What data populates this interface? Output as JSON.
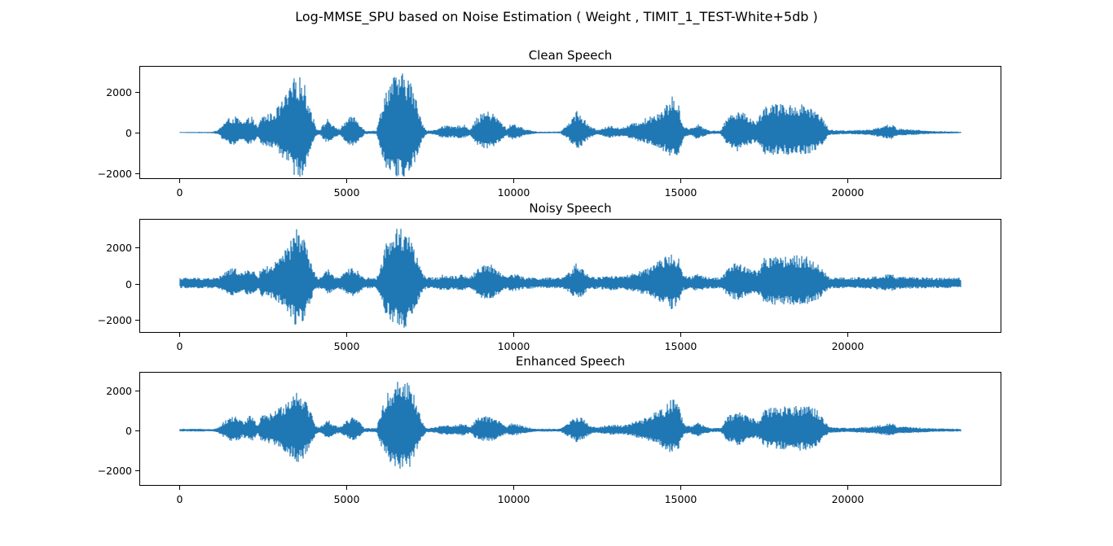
{
  "figure_title": "Log-MMSE_SPU based on Noise Estimation ( Weight , TIMIT_1_TEST-White+5db )",
  "line_color": "#1f77b4",
  "chart_data": [
    {
      "type": "line",
      "title": "Clean Speech",
      "xlim": [
        -1200,
        24600
      ],
      "ylim": [
        -2300,
        3300
      ],
      "x_ticks": [
        0,
        5000,
        10000,
        15000,
        20000
      ],
      "x_tick_labels": [
        "0",
        "5000",
        "10000",
        "15000",
        "20000"
      ],
      "y_ticks": [
        -2000,
        0,
        2000
      ],
      "y_tick_labels": [
        "−2000",
        "0",
        "2000"
      ],
      "n_samples": 23400,
      "noise_floor": 12,
      "envelope_points": [
        [
          0,
          25
        ],
        [
          1000,
          40
        ],
        [
          1150,
          120
        ],
        [
          1300,
          450
        ],
        [
          1500,
          750
        ],
        [
          1700,
          800
        ],
        [
          1900,
          500
        ],
        [
          2150,
          850
        ],
        [
          2350,
          250
        ],
        [
          2450,
          850
        ],
        [
          2800,
          1000
        ],
        [
          3000,
          1400
        ],
        [
          3300,
          2200
        ],
        [
          3500,
          2950
        ],
        [
          3700,
          2700
        ],
        [
          3900,
          1400
        ],
        [
          4100,
          200
        ],
        [
          4200,
          150
        ],
        [
          4450,
          750
        ],
        [
          4600,
          350
        ],
        [
          4800,
          180
        ],
        [
          5000,
          650
        ],
        [
          5200,
          900
        ],
        [
          5400,
          500
        ],
        [
          5550,
          100
        ],
        [
          5900,
          100
        ],
        [
          6050,
          1300
        ],
        [
          6200,
          2300
        ],
        [
          6400,
          2800
        ],
        [
          6600,
          2950
        ],
        [
          6850,
          2900
        ],
        [
          7050,
          1900
        ],
        [
          7250,
          600
        ],
        [
          7400,
          100
        ],
        [
          7700,
          150
        ],
        [
          7850,
          380
        ],
        [
          8200,
          300
        ],
        [
          8500,
          420
        ],
        [
          8700,
          180
        ],
        [
          8900,
          750
        ],
        [
          9150,
          1100
        ],
        [
          9400,
          950
        ],
        [
          9600,
          600
        ],
        [
          9800,
          200
        ],
        [
          9950,
          500
        ],
        [
          10150,
          350
        ],
        [
          10300,
          200
        ],
        [
          10700,
          50
        ],
        [
          11400,
          50
        ],
        [
          11700,
          600
        ],
        [
          11900,
          1150
        ],
        [
          12100,
          700
        ],
        [
          12300,
          300
        ],
        [
          12500,
          150
        ],
        [
          12900,
          350
        ],
        [
          13250,
          250
        ],
        [
          13400,
          350
        ],
        [
          14000,
          750
        ],
        [
          14500,
          1250
        ],
        [
          14750,
          1800
        ],
        [
          14950,
          1350
        ],
        [
          15100,
          300
        ],
        [
          15300,
          200
        ],
        [
          15500,
          450
        ],
        [
          15700,
          250
        ],
        [
          15900,
          100
        ],
        [
          16200,
          100
        ],
        [
          16400,
          800
        ],
        [
          16700,
          1200
        ],
        [
          16950,
          900
        ],
        [
          17300,
          600
        ],
        [
          17500,
          1400
        ],
        [
          17800,
          1450
        ],
        [
          18150,
          1400
        ],
        [
          18400,
          1450
        ],
        [
          18800,
          1400
        ],
        [
          19100,
          1100
        ],
        [
          19300,
          600
        ],
        [
          19450,
          150
        ],
        [
          20000,
          100
        ],
        [
          20700,
          180
        ],
        [
          21100,
          350
        ],
        [
          21300,
          450
        ],
        [
          21500,
          200
        ],
        [
          22000,
          150
        ],
        [
          22500,
          80
        ],
        [
          23000,
          60
        ],
        [
          23400,
          40
        ]
      ]
    },
    {
      "type": "line",
      "title": "Noisy Speech",
      "xlim": [
        -1200,
        24600
      ],
      "ylim": [
        -2700,
        3550
      ],
      "x_ticks": [
        0,
        5000,
        10000,
        15000,
        20000
      ],
      "x_tick_labels": [
        "0",
        "5000",
        "10000",
        "15000",
        "20000"
      ],
      "y_ticks": [
        -2000,
        0,
        2000
      ],
      "y_tick_labels": [
        "−2000",
        "0",
        "2000"
      ],
      "n_samples": 23400,
      "noise_floor": 330,
      "envelope_points": [
        [
          0,
          25
        ],
        [
          1000,
          40
        ],
        [
          1150,
          120
        ],
        [
          1300,
          450
        ],
        [
          1500,
          750
        ],
        [
          1700,
          800
        ],
        [
          1900,
          500
        ],
        [
          2150,
          850
        ],
        [
          2350,
          250
        ],
        [
          2450,
          850
        ],
        [
          2800,
          1000
        ],
        [
          3000,
          1400
        ],
        [
          3300,
          2200
        ],
        [
          3500,
          3100
        ],
        [
          3700,
          2800
        ],
        [
          3900,
          1400
        ],
        [
          4100,
          200
        ],
        [
          4200,
          150
        ],
        [
          4450,
          750
        ],
        [
          4600,
          350
        ],
        [
          4800,
          180
        ],
        [
          5000,
          650
        ],
        [
          5200,
          900
        ],
        [
          5400,
          500
        ],
        [
          5550,
          100
        ],
        [
          5900,
          100
        ],
        [
          6050,
          1300
        ],
        [
          6200,
          2300
        ],
        [
          6400,
          2900
        ],
        [
          6600,
          3200
        ],
        [
          6850,
          3000
        ],
        [
          7050,
          1900
        ],
        [
          7250,
          600
        ],
        [
          7400,
          100
        ],
        [
          7700,
          150
        ],
        [
          7850,
          380
        ],
        [
          8200,
          300
        ],
        [
          8500,
          420
        ],
        [
          8700,
          180
        ],
        [
          8900,
          750
        ],
        [
          9150,
          1100
        ],
        [
          9400,
          950
        ],
        [
          9600,
          600
        ],
        [
          9800,
          200
        ],
        [
          9950,
          500
        ],
        [
          10150,
          350
        ],
        [
          10300,
          200
        ],
        [
          10700,
          50
        ],
        [
          11400,
          50
        ],
        [
          11700,
          600
        ],
        [
          11900,
          1150
        ],
        [
          12100,
          700
        ],
        [
          12300,
          300
        ],
        [
          12500,
          150
        ],
        [
          12900,
          350
        ],
        [
          13250,
          250
        ],
        [
          13400,
          350
        ],
        [
          14000,
          750
        ],
        [
          14500,
          1400
        ],
        [
          14750,
          1850
        ],
        [
          14950,
          1350
        ],
        [
          15100,
          300
        ],
        [
          15300,
          200
        ],
        [
          15500,
          450
        ],
        [
          15700,
          250
        ],
        [
          15900,
          100
        ],
        [
          16200,
          100
        ],
        [
          16400,
          800
        ],
        [
          16700,
          1200
        ],
        [
          16950,
          900
        ],
        [
          17300,
          600
        ],
        [
          17500,
          1400
        ],
        [
          17800,
          1500
        ],
        [
          18150,
          1450
        ],
        [
          18400,
          1550
        ],
        [
          18800,
          1450
        ],
        [
          19100,
          1100
        ],
        [
          19300,
          600
        ],
        [
          19450,
          150
        ],
        [
          20000,
          100
        ],
        [
          20700,
          180
        ],
        [
          21100,
          350
        ],
        [
          21300,
          450
        ],
        [
          21500,
          200
        ],
        [
          22000,
          150
        ],
        [
          22500,
          80
        ],
        [
          23000,
          60
        ],
        [
          23400,
          40
        ]
      ]
    },
    {
      "type": "line",
      "title": "Enhanced Speech",
      "xlim": [
        -1200,
        24600
      ],
      "ylim": [
        -2800,
        2950
      ],
      "x_ticks": [
        0,
        5000,
        10000,
        15000,
        20000
      ],
      "x_tick_labels": [
        "0",
        "5000",
        "10000",
        "15000",
        "20000"
      ],
      "y_ticks": [
        -2000,
        0,
        2000
      ],
      "y_tick_labels": [
        "−2000",
        "0",
        "2000"
      ],
      "n_samples": 23400,
      "noise_floor": 70,
      "envelope_points": [
        [
          0,
          25
        ],
        [
          1000,
          40
        ],
        [
          1150,
          120
        ],
        [
          1300,
          400
        ],
        [
          1500,
          650
        ],
        [
          1700,
          750
        ],
        [
          1900,
          450
        ],
        [
          2150,
          800
        ],
        [
          2350,
          250
        ],
        [
          2450,
          750
        ],
        [
          2800,
          900
        ],
        [
          3000,
          1200
        ],
        [
          3300,
          1700
        ],
        [
          3500,
          2100
        ],
        [
          3700,
          1900
        ],
        [
          3900,
          1100
        ],
        [
          4100,
          200
        ],
        [
          4200,
          150
        ],
        [
          4450,
          550
        ],
        [
          4600,
          300
        ],
        [
          4800,
          180
        ],
        [
          5000,
          500
        ],
        [
          5200,
          700
        ],
        [
          5400,
          400
        ],
        [
          5550,
          100
        ],
        [
          5900,
          100
        ],
        [
          6050,
          1100
        ],
        [
          6200,
          1800
        ],
        [
          6400,
          2300
        ],
        [
          6600,
          2650
        ],
        [
          6850,
          2600
        ],
        [
          7050,
          1700
        ],
        [
          7250,
          500
        ],
        [
          7400,
          100
        ],
        [
          7700,
          150
        ],
        [
          7850,
          300
        ],
        [
          8200,
          250
        ],
        [
          8500,
          350
        ],
        [
          8700,
          180
        ],
        [
          8900,
          600
        ],
        [
          9150,
          750
        ],
        [
          9400,
          650
        ],
        [
          9600,
          450
        ],
        [
          9800,
          200
        ],
        [
          9950,
          350
        ],
        [
          10150,
          300
        ],
        [
          10300,
          200
        ],
        [
          10700,
          50
        ],
        [
          11400,
          50
        ],
        [
          11700,
          500
        ],
        [
          11900,
          800
        ],
        [
          12100,
          550
        ],
        [
          12300,
          250
        ],
        [
          12500,
          150
        ],
        [
          12900,
          300
        ],
        [
          13250,
          250
        ],
        [
          13400,
          300
        ],
        [
          14000,
          650
        ],
        [
          14500,
          1200
        ],
        [
          14750,
          1650
        ],
        [
          14950,
          1200
        ],
        [
          15100,
          300
        ],
        [
          15300,
          200
        ],
        [
          15500,
          400
        ],
        [
          15700,
          250
        ],
        [
          15900,
          100
        ],
        [
          16200,
          100
        ],
        [
          16400,
          700
        ],
        [
          16700,
          1000
        ],
        [
          16950,
          800
        ],
        [
          17300,
          500
        ],
        [
          17500,
          1100
        ],
        [
          17800,
          1200
        ],
        [
          18150,
          1250
        ],
        [
          18400,
          1300
        ],
        [
          18800,
          1350
        ],
        [
          19100,
          1000
        ],
        [
          19300,
          500
        ],
        [
          19450,
          150
        ],
        [
          20000,
          100
        ],
        [
          20700,
          180
        ],
        [
          21100,
          300
        ],
        [
          21300,
          380
        ],
        [
          21500,
          200
        ],
        [
          22000,
          150
        ],
        [
          22500,
          80
        ],
        [
          23000,
          60
        ],
        [
          23400,
          40
        ]
      ]
    }
  ]
}
